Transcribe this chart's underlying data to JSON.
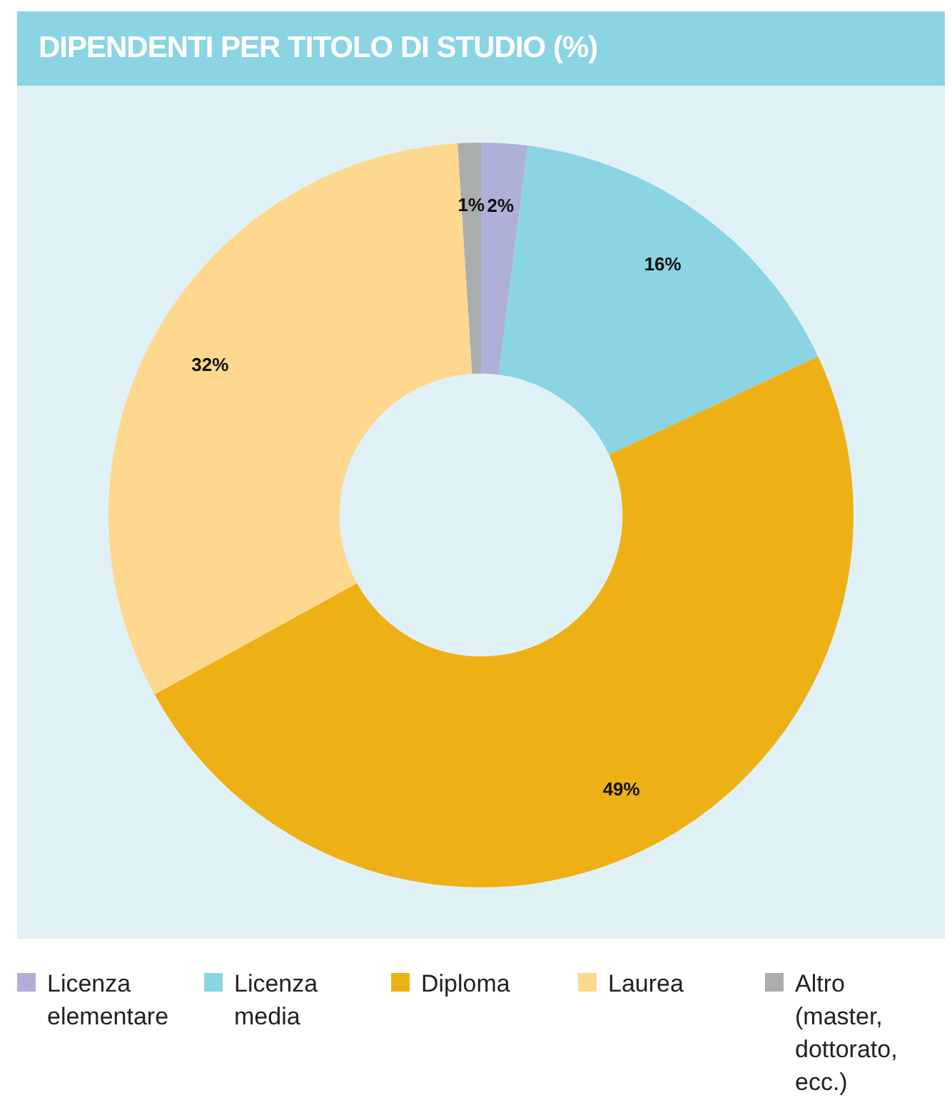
{
  "chart_data": {
    "type": "donut",
    "title": "DIPENDENTI PER TITOLO DI STUDIO (%)",
    "categories": [
      "Licenza elementare",
      "Licenza media",
      "Diploma",
      "Laurea",
      "Altro (master, dottorato, ecc.)"
    ],
    "values": [
      2,
      16,
      49,
      32,
      1
    ],
    "colors": [
      "#aeb0da",
      "#8ad4e3",
      "#eeb115",
      "#fdd88e",
      "#a9adae"
    ],
    "value_labels": [
      "2%",
      "16%",
      "49%",
      "32%",
      "1%"
    ],
    "legend": "bottom"
  }
}
